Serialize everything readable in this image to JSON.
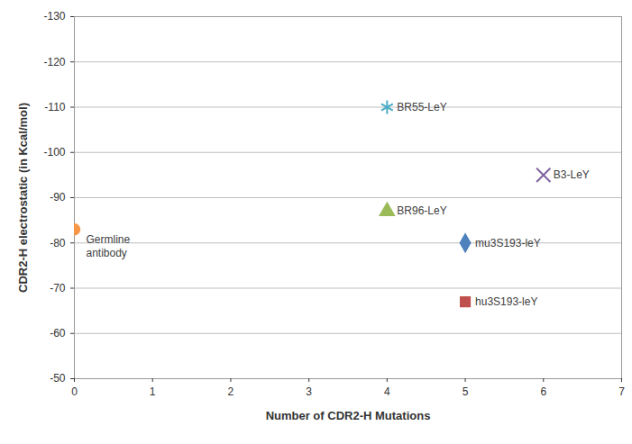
{
  "chart_data": {
    "type": "scatter",
    "x_label": "Number of CDR2-H Mutations",
    "y_label": "CDR2-H electrostatic (in Kcal/mol)",
    "xlim": [
      0,
      7
    ],
    "xticks": [
      0,
      1,
      2,
      3,
      4,
      5,
      6,
      7
    ],
    "ylim": [
      -50,
      -130
    ],
    "yticks": [
      -130,
      -120,
      -110,
      -100,
      -90,
      -80,
      -70,
      -60,
      -50
    ],
    "grid": true,
    "series": [
      {
        "name": "Germline\nantibody",
        "color": "#f79646",
        "marker": "circle",
        "x": [
          0
        ],
        "values": [
          -83
        ]
      },
      {
        "name": "BR55-LeY",
        "color": "#4bacc6",
        "marker": "asterisk",
        "x": [
          4
        ],
        "values": [
          -110
        ]
      },
      {
        "name": "B3-LeY",
        "color": "#8064a2",
        "marker": "times",
        "x": [
          6
        ],
        "values": [
          -95
        ]
      },
      {
        "name": "BR96-LeY",
        "color": "#9bbb59",
        "marker": "triangle",
        "x": [
          4
        ],
        "values": [
          -87
        ]
      },
      {
        "name": "mu3S193-leY",
        "color": "#4f81bd",
        "marker": "diamond",
        "x": [
          5
        ],
        "values": [
          -80
        ]
      },
      {
        "name": "hu3S193-leY",
        "color": "#c0504d",
        "marker": "square",
        "x": [
          5
        ],
        "values": [
          -67
        ]
      }
    ]
  }
}
